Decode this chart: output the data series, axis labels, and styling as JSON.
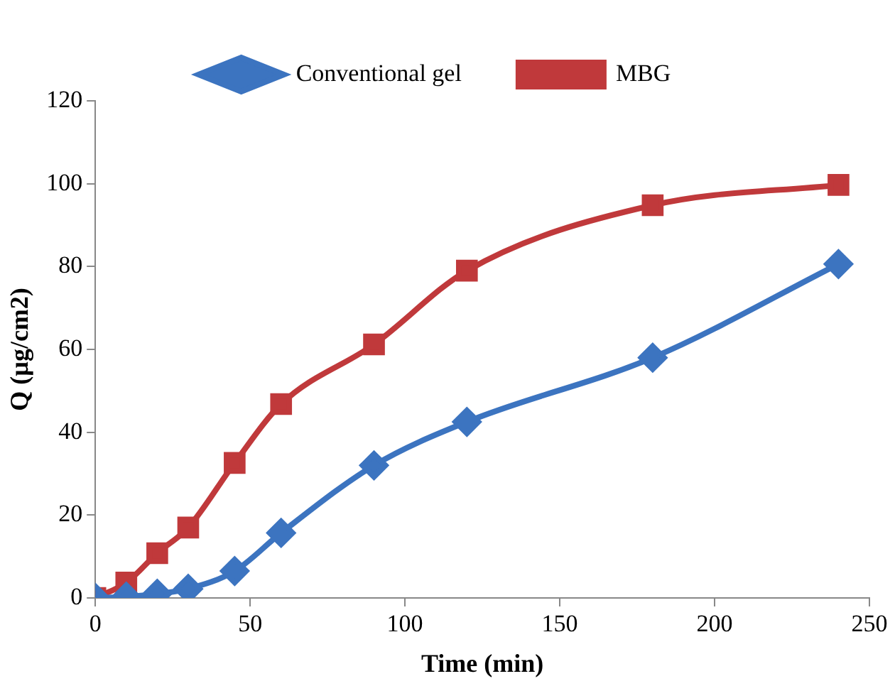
{
  "chart_data": {
    "type": "line",
    "xlabel": "Time (min)",
    "ylabel": "Q (µg/cm2)",
    "x": [
      0,
      10,
      20,
      30,
      45,
      60,
      90,
      120,
      180,
      240
    ],
    "series": [
      {
        "name": "Conventional gel",
        "color": "#3c74c0",
        "marker": "diamond",
        "values": [
          0,
          0.3,
          1,
          2.2,
          6.5,
          15.7,
          32,
          42.5,
          58,
          80.6
        ]
      },
      {
        "name": "MBG",
        "color": "#c0393b",
        "marker": "square",
        "values": [
          0,
          3.7,
          10.8,
          17,
          32.6,
          46.8,
          61.2,
          79,
          94.8,
          99.7
        ]
      }
    ],
    "xlim": [
      0,
      250
    ],
    "xticks": [
      0,
      50,
      100,
      150,
      200,
      250
    ],
    "ylim": [
      0,
      120
    ],
    "yticks": [
      0,
      20,
      40,
      60,
      80,
      100,
      120
    ],
    "grid": false,
    "legend": "top",
    "line_style": "solid"
  }
}
